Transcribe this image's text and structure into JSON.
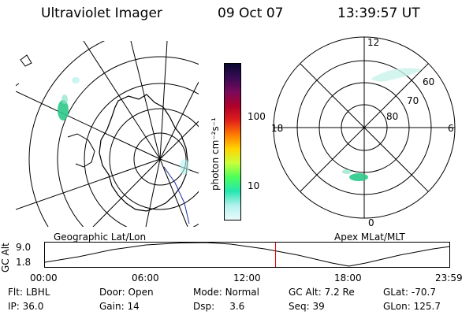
{
  "header": {
    "instrument": "Ultraviolet Imager",
    "date": "09 Oct 07",
    "time": "13:39:57 UT"
  },
  "colorbar": {
    "unit_label": "photon cm⁻²s⁻¹",
    "ticks": [
      "100",
      "10"
    ],
    "colors": [
      "#0a0a30",
      "#3a0a55",
      "#7a0a5a",
      "#b0002a",
      "#e0201a",
      "#ff7a00",
      "#ffd400",
      "#c8ff3a",
      "#4cff5a",
      "#25e6b0",
      "#b4f1ee",
      "#e8fbfb"
    ]
  },
  "geographic_map": {
    "label": "Geographic Lat/Lon",
    "aurora_color": "#2cc98a"
  },
  "polar_map": {
    "label": "Apex MLat/MLT",
    "hours": {
      "top": "12",
      "left": "18",
      "right": "6",
      "bottom": "0"
    },
    "latitudes": [
      "60",
      "70",
      "80"
    ],
    "aurora_color": "#2cc98a"
  },
  "gc_alt": {
    "axis_label": "GC Alt",
    "y_ticks": [
      "9.0",
      "1.8"
    ],
    "x_ticks": [
      "00:00",
      "06:00",
      "12:00",
      "18:00",
      "23:59"
    ],
    "current_time_marker_hours": 13.66,
    "marker_color": "#dd0000"
  },
  "info": {
    "flt_label": "Flt:",
    "flt_value": "LBHL",
    "ip_label": "IP:",
    "ip_value": "36.0",
    "door_label": "Door:",
    "door_value": "Open",
    "gain_label": "Gain:",
    "gain_value": "14",
    "mode_label": "Mode:",
    "mode_value": "Normal",
    "dsp_label": "Dsp:",
    "dsp_value": "3.6",
    "gcalt_label": "GC Alt:",
    "gcalt_value": "7.2 Re",
    "seq_label": "Seq:",
    "seq_value": "39",
    "glat_label": "GLat:",
    "glat_value": "-70.7",
    "glon_label": "GLon:",
    "glon_value": "125.7"
  }
}
